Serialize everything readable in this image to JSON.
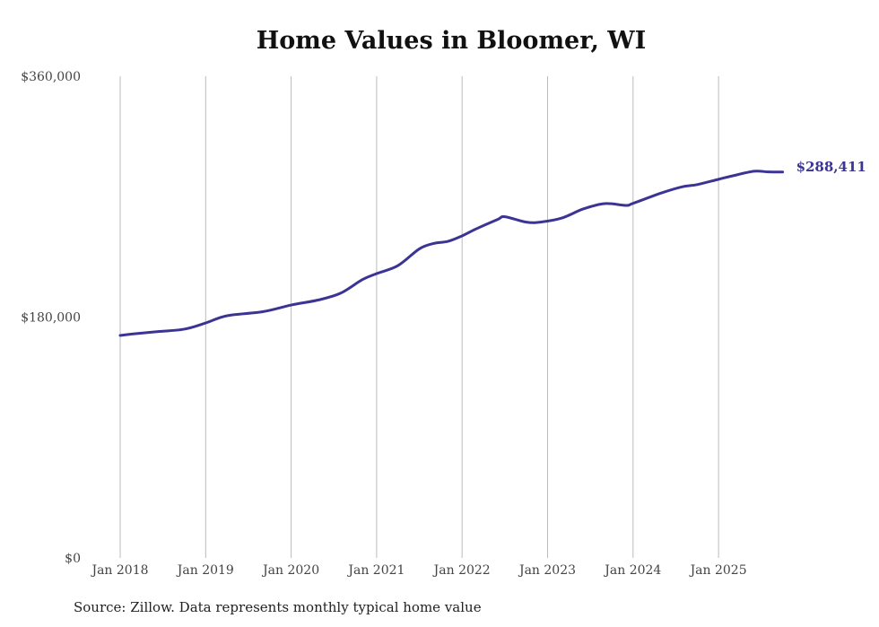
{
  "chart_data": {
    "type": "line",
    "title": "Home Values in Bloomer, WI",
    "source": "Source: Zillow. Data represents monthly typical home value",
    "xlabel": "",
    "ylabel": "",
    "ylim": [
      0,
      360000
    ],
    "y_ticks": [
      0,
      180000,
      360000
    ],
    "y_tick_labels": [
      "$0",
      "$180,000",
      "$360,000"
    ],
    "x_tick_labels": [
      "Jan 2018",
      "Jan 2019",
      "Jan 2020",
      "Jan 2021",
      "Jan 2022",
      "Jan 2023",
      "Jan 2024",
      "Jan 2025"
    ],
    "grid": "vertical at each year",
    "line_color": "#3b3494",
    "end_label": "$288,411",
    "series": [
      {
        "name": "Typical home value",
        "points": [
          [
            "2018-01",
            166300
          ],
          [
            "2018-03",
            167500
          ],
          [
            "2018-06",
            169000
          ],
          [
            "2018-10",
            171000
          ],
          [
            "2019-01",
            175600
          ],
          [
            "2019-04",
            181000
          ],
          [
            "2019-09",
            184000
          ],
          [
            "2020-01",
            189000
          ],
          [
            "2020-05",
            193000
          ],
          [
            "2020-08",
            198000
          ],
          [
            "2020-11",
            208000
          ],
          [
            "2021-01",
            212500
          ],
          [
            "2021-04",
            218500
          ],
          [
            "2021-07",
            231000
          ],
          [
            "2021-09",
            235000
          ],
          [
            "2021-11",
            236600
          ],
          [
            "2022-01",
            240700
          ],
          [
            "2022-03",
            246000
          ],
          [
            "2022-06",
            253000
          ],
          [
            "2022-07",
            255000
          ],
          [
            "2022-10",
            251000
          ],
          [
            "2022-12",
            251000
          ],
          [
            "2023-03",
            254000
          ],
          [
            "2023-06",
            260800
          ],
          [
            "2023-09",
            264800
          ],
          [
            "2023-12",
            263500
          ],
          [
            "2024-01",
            265000
          ],
          [
            "2024-05",
            272800
          ],
          [
            "2024-08",
            277500
          ],
          [
            "2024-10",
            279000
          ],
          [
            "2025-01",
            283000
          ],
          [
            "2025-03",
            285600
          ],
          [
            "2025-06",
            289000
          ],
          [
            "2025-08",
            288500
          ],
          [
            "2025-10",
            288411
          ]
        ]
      }
    ]
  }
}
